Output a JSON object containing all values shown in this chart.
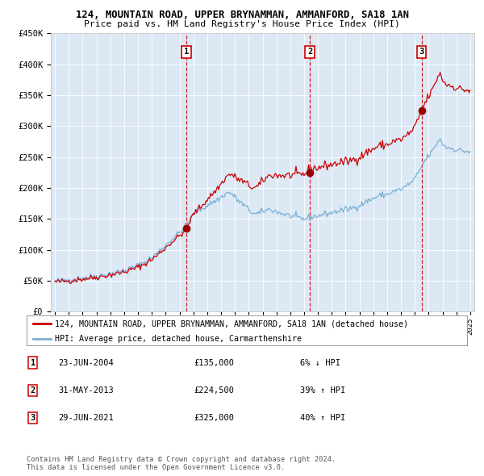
{
  "title": "124, MOUNTAIN ROAD, UPPER BRYNAMMAN, AMMANFORD, SA18 1AN",
  "subtitle": "Price paid vs. HM Land Registry's House Price Index (HPI)",
  "bg_color": "#dce9f5",
  "hpi_line_color": "#7bafd4",
  "price_line_color": "#cc0000",
  "sale_marker_color": "#990000",
  "vline_color_red": "#cc0000",
  "sale_dates": [
    2004.48,
    2013.41,
    2021.49
  ],
  "sale_prices": [
    135000,
    224500,
    325000
  ],
  "sale_labels": [
    "1",
    "2",
    "3"
  ],
  "sale_info": [
    [
      "1",
      "23-JUN-2004",
      "£135,000",
      "6% ↓ HPI"
    ],
    [
      "2",
      "31-MAY-2013",
      "£224,500",
      "39% ↑ HPI"
    ],
    [
      "3",
      "29-JUN-2021",
      "£325,000",
      "40% ↑ HPI"
    ]
  ],
  "legend_entries": [
    "124, MOUNTAIN ROAD, UPPER BRYNAMMAN, AMMANFORD, SA18 1AN (detached house)",
    "HPI: Average price, detached house, Carmarthenshire"
  ],
  "footer_text": "Contains HM Land Registry data © Crown copyright and database right 2024.\nThis data is licensed under the Open Government Licence v3.0.",
  "ylim": [
    0,
    450000
  ],
  "yticks": [
    0,
    50000,
    100000,
    150000,
    200000,
    250000,
    300000,
    350000,
    400000,
    450000
  ],
  "start_year": 1995,
  "end_year": 2025,
  "hpi_key_points": {
    "1995.0": 50000,
    "1996.0": 52000,
    "1997.0": 55000,
    "1998.0": 58000,
    "1999.0": 62000,
    "2000.0": 67000,
    "2001.0": 75000,
    "2002.0": 88000,
    "2003.0": 108000,
    "2004.0": 128000,
    "2004.5": 140000,
    "2005.0": 158000,
    "2005.5": 165000,
    "2006.0": 172000,
    "2006.5": 178000,
    "2007.0": 185000,
    "2007.5": 192000,
    "2007.8": 190000,
    "2008.0": 185000,
    "2008.5": 175000,
    "2009.0": 165000,
    "2009.5": 158000,
    "2010.0": 162000,
    "2010.5": 165000,
    "2011.0": 162000,
    "2011.5": 158000,
    "2012.0": 155000,
    "2012.5": 152000,
    "2013.0": 150000,
    "2013.5": 153000,
    "2014.0": 155000,
    "2014.5": 158000,
    "2015.0": 160000,
    "2015.5": 163000,
    "2016.0": 165000,
    "2016.5": 168000,
    "2017.0": 172000,
    "2017.5": 178000,
    "2018.0": 183000,
    "2018.5": 188000,
    "2019.0": 190000,
    "2019.5": 195000,
    "2020.0": 198000,
    "2020.5": 205000,
    "2021.0": 215000,
    "2021.5": 235000,
    "2022.0": 252000,
    "2022.5": 268000,
    "2022.8": 278000,
    "2023.0": 272000,
    "2023.5": 265000,
    "2024.0": 262000,
    "2024.5": 260000,
    "2025.0": 258000
  }
}
